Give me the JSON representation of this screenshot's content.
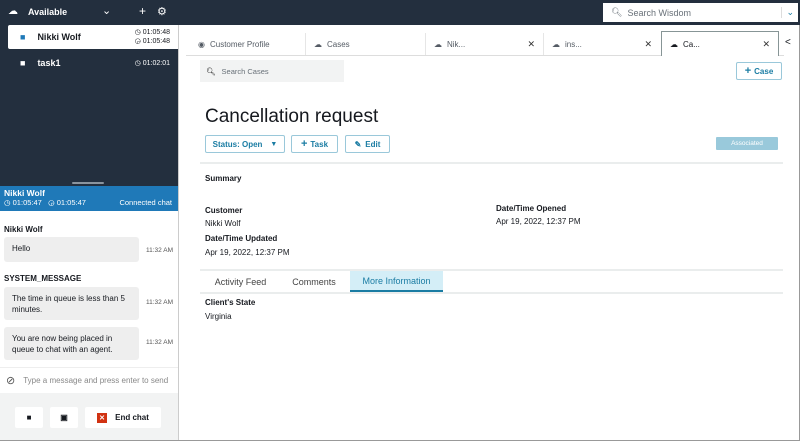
{
  "topbar": {
    "status": "Available",
    "search_placeholder": "Search Wisdom"
  },
  "contacts": [
    {
      "name": "Nikki Wolf",
      "time1": "01:05:48",
      "time2": "01:05:48",
      "icon": "chat-icon"
    },
    {
      "name": "task1",
      "time1": "01:02:01",
      "icon": "briefcase-icon"
    }
  ],
  "chat": {
    "header": {
      "name": "Nikki Wolf",
      "time1": "01:05:47",
      "time2": "01:05:47",
      "status": "Connected chat"
    },
    "groups": [
      {
        "sender": "Nikki Wolf",
        "messages": [
          {
            "text": "Hello",
            "time": "11:32 AM"
          }
        ]
      },
      {
        "sender": "SYSTEM_MESSAGE",
        "messages": [
          {
            "text": "The time in queue is less than 5 minutes.",
            "time": "11:32 AM"
          },
          {
            "text": "You are now being placed in queue to chat with an agent.",
            "time": "11:32 AM"
          }
        ]
      }
    ],
    "input_placeholder": "Type a message and press enter to send",
    "end_chat": "End chat"
  },
  "tabs": [
    {
      "label": "Customer Profile"
    },
    {
      "label": "Cases"
    },
    {
      "label": "Nik..."
    },
    {
      "label": "ins..."
    },
    {
      "label": "Ca..."
    }
  ],
  "cases": {
    "search_placeholder": "Search Cases",
    "new_case": "Case",
    "title": "Cancellation request",
    "status": "Status: Open",
    "task": "Task",
    "edit": "Edit",
    "associated": "Associated",
    "summary": "Summary",
    "customer_label": "Customer",
    "customer": "Nikki Wolf",
    "updated_label": "Date/Time Updated",
    "updated": "Apr 19, 2022, 12:37 PM",
    "opened_label": "Date/Time Opened",
    "opened": "Apr 19, 2022, 12:37 PM",
    "subtabs": [
      "Activity Feed",
      "Comments",
      "More Information"
    ],
    "active_subtab": "More Information",
    "state_label": "Client's State",
    "state": "Virginia"
  },
  "colors": {
    "topbar": "#232f3e",
    "accent": "#1f79b8",
    "link": "#1a7ca3"
  }
}
